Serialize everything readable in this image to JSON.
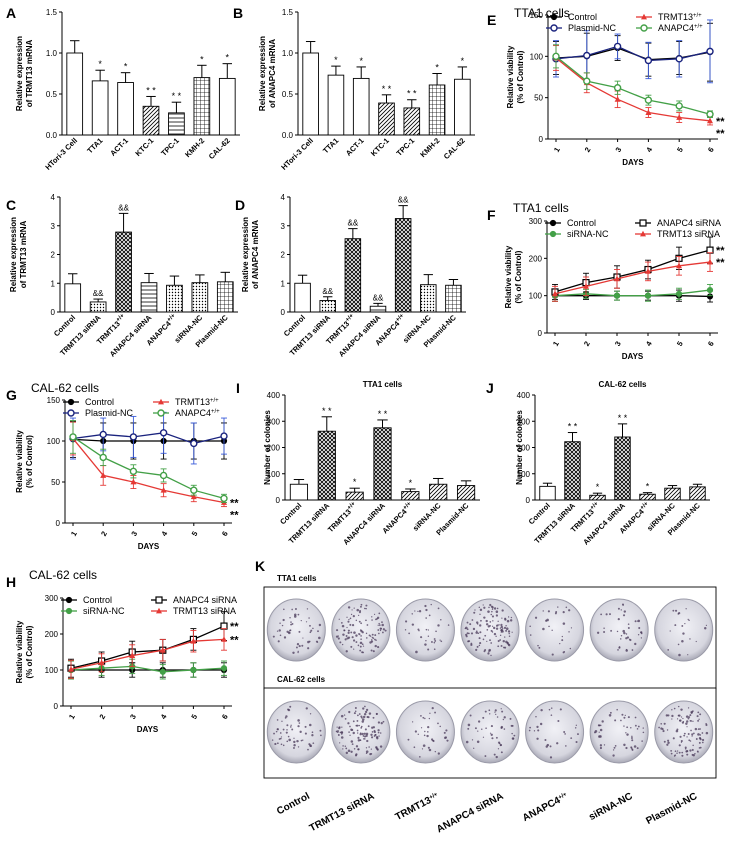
{
  "colors": {
    "control": "#000000",
    "plasmid_nc": "#1a237e",
    "trmt13_oe": "#e53935",
    "anapc4_oe": "#43a047",
    "errbar_blue": "#3a5bd9"
  },
  "chart_data": [
    {
      "id": "A",
      "type": "bar",
      "title": "",
      "ylabel": "Relative expression of TRMT13 mRNA",
      "ylim": [
        0,
        1.5
      ],
      "yticks": [
        "0.0",
        "0.5",
        "1.0",
        "1.5"
      ],
      "categories": [
        "HTori-3 Cell",
        "TTA1",
        "ACT-1",
        "KTC-1",
        "TPC-1",
        "KMH-2",
        "CAL-62"
      ],
      "values": [
        1.0,
        0.66,
        0.64,
        0.35,
        0.27,
        0.7,
        0.69
      ],
      "errors": [
        0.15,
        0.13,
        0.12,
        0.12,
        0.13,
        0.15,
        0.18
      ],
      "patterns": [
        "white",
        "white",
        "white",
        "diag",
        "hatch",
        "grid",
        "white"
      ],
      "annotations": [
        "",
        "*",
        "*",
        "* *",
        "* *",
        "*",
        "*"
      ]
    },
    {
      "id": "B",
      "type": "bar",
      "title": "",
      "ylabel": "Relative expression of ANAPC4 mRNA",
      "ylim": [
        0,
        1.5
      ],
      "yticks": [
        "0.0",
        "0.5",
        "1.0",
        "1.5"
      ],
      "categories": [
        "HTori-3 Cell",
        "TTA1",
        "ACT-1",
        "KTC-1",
        "TPC-1",
        "KMH-2",
        "CAL-62"
      ],
      "values": [
        1.0,
        0.73,
        0.69,
        0.39,
        0.33,
        0.61,
        0.68
      ],
      "errors": [
        0.14,
        0.11,
        0.14,
        0.1,
        0.1,
        0.14,
        0.15
      ],
      "patterns": [
        "white",
        "white",
        "white",
        "diag",
        "diag",
        "grid",
        "white"
      ],
      "annotations": [
        "",
        "*",
        "*",
        "* *",
        "* *",
        "*",
        "*"
      ]
    },
    {
      "id": "C",
      "type": "bar",
      "title": "",
      "ylabel": "Relative expression of TRMT13 mRNA",
      "ylim": [
        0,
        4
      ],
      "yticks": [
        "0",
        "1",
        "2",
        "3",
        "4"
      ],
      "categories": [
        "Control",
        "TRMT13 siRNA",
        "TRMT13+/+",
        "ANAPC4 siRNA",
        "ANAPC4+/+",
        "siRNA-NC",
        "Plasmid-NC"
      ],
      "values": [
        0.98,
        0.35,
        2.78,
        1.02,
        0.93,
        1.02,
        1.05
      ],
      "errors": [
        0.35,
        0.1,
        0.65,
        0.32,
        0.32,
        0.27,
        0.33
      ],
      "patterns": [
        "white",
        "dots",
        "cross",
        "hatch",
        "dots",
        "dots",
        "grid"
      ],
      "annotations": [
        "",
        "&&",
        "&&",
        "",
        "",
        "",
        ""
      ]
    },
    {
      "id": "D",
      "type": "bar",
      "title": "",
      "ylabel": "Relative expression of ANAPC4 mRNA",
      "ylim": [
        0,
        4
      ],
      "yticks": [
        "0",
        "1",
        "2",
        "3",
        "4"
      ],
      "categories": [
        "Control",
        "TRMT13 siRNA",
        "TRMT13+/+",
        "ANAPC4 siRNA",
        "ANAPC4+/+",
        "siRNA-NC",
        "Plasmid-NC"
      ],
      "values": [
        1.0,
        0.4,
        2.55,
        0.2,
        3.25,
        0.95,
        0.93
      ],
      "errors": [
        0.28,
        0.13,
        0.35,
        0.1,
        0.45,
        0.35,
        0.2
      ],
      "patterns": [
        "white",
        "dots",
        "cross",
        "hatch",
        "cross",
        "dots",
        "grid"
      ],
      "annotations": [
        "",
        "&&",
        "&&",
        "&&",
        "&&",
        "",
        ""
      ]
    },
    {
      "id": "E",
      "type": "line",
      "title": "TTA1 cells",
      "ylabel": "Relative viability (% of Control)",
      "xlabel": "DAYS",
      "ylim": [
        0,
        150
      ],
      "yticks": [
        "0",
        "50",
        "100",
        "150"
      ],
      "x": [
        1,
        2,
        3,
        4,
        5,
        6
      ],
      "series": [
        {
          "name": "Control",
          "values": [
            98,
            100,
            110,
            96,
            98,
            105
          ],
          "errors": [
            20,
            28,
            15,
            20,
            20,
            35
          ]
        },
        {
          "name": "Plasmid-NC",
          "values": [
            97,
            101,
            112,
            95,
            97,
            106
          ],
          "errors": [
            22,
            30,
            15,
            22,
            22,
            38
          ]
        },
        {
          "name": "TRMT13+/+",
          "values": [
            98,
            68,
            48,
            32,
            26,
            22
          ],
          "errors": [
            15,
            12,
            10,
            6,
            6,
            5
          ]
        },
        {
          "name": "ANAPC4+/+",
          "values": [
            100,
            70,
            62,
            47,
            40,
            30
          ],
          "errors": [
            14,
            10,
            8,
            6,
            6,
            4
          ]
        }
      ],
      "annotations": [
        "**",
        "**"
      ]
    },
    {
      "id": "F",
      "type": "line",
      "title": "TTA1 cells",
      "ylabel": "Relative viability (% of Control)",
      "xlabel": "DAYS",
      "ylim": [
        0,
        300
      ],
      "yticks": [
        "0",
        "100",
        "200",
        "300"
      ],
      "x": [
        1,
        2,
        3,
        4,
        5,
        6
      ],
      "series": [
        {
          "name": "Control",
          "values": [
            100,
            100,
            100,
            100,
            100,
            98
          ],
          "errors": [
            15,
            10,
            12,
            12,
            15,
            15
          ]
        },
        {
          "name": "siRNA-NC",
          "values": [
            100,
            105,
            100,
            100,
            105,
            115
          ],
          "errors": [
            15,
            12,
            12,
            15,
            15,
            15
          ]
        },
        {
          "name": "ANAPC4 siRNA",
          "values": [
            110,
            135,
            150,
            170,
            200,
            222
          ],
          "errors": [
            20,
            25,
            30,
            25,
            30,
            35
          ]
        },
        {
          "name": "TRMT13 siRNA",
          "values": [
            105,
            125,
            145,
            165,
            180,
            190
          ],
          "errors": [
            20,
            25,
            25,
            25,
            25,
            25
          ]
        }
      ],
      "annotations": [
        "**",
        "**"
      ]
    },
    {
      "id": "G",
      "type": "line",
      "title": "CAL-62 cells",
      "ylabel": "Relative viability (% of Control)",
      "xlabel": "DAYS",
      "ylim": [
        0,
        150
      ],
      "yticks": [
        "0",
        "50",
        "100",
        "150"
      ],
      "x": [
        1,
        2,
        3,
        4,
        5,
        6
      ],
      "series": [
        {
          "name": "Control",
          "values": [
            102,
            100,
            100,
            100,
            100,
            100
          ],
          "errors": [
            22,
            22,
            22,
            22,
            22,
            22
          ]
        },
        {
          "name": "Plasmid-NC",
          "values": [
            103,
            108,
            105,
            110,
            97,
            106
          ],
          "errors": [
            25,
            20,
            25,
            25,
            25,
            22
          ]
        },
        {
          "name": "TRMT13+/+",
          "values": [
            103,
            58,
            50,
            40,
            32,
            25
          ],
          "errors": [
            20,
            12,
            8,
            8,
            6,
            5
          ]
        },
        {
          "name": "ANAPC4+/+",
          "values": [
            105,
            80,
            63,
            58,
            40,
            30
          ],
          "errors": [
            20,
            10,
            8,
            8,
            6,
            5
          ]
        }
      ],
      "annotations": [
        "**",
        "**"
      ]
    },
    {
      "id": "H",
      "type": "line",
      "title": "CAL-62 cells",
      "ylabel": "Relative viability (% of Control)",
      "xlabel": "DAYS",
      "ylim": [
        0,
        300
      ],
      "yticks": [
        "0",
        "100",
        "200",
        "300"
      ],
      "x": [
        1,
        2,
        3,
        4,
        5,
        6
      ],
      "series": [
        {
          "name": "Control",
          "values": [
            100,
            100,
            100,
            100,
            100,
            100
          ],
          "errors": [
            25,
            20,
            20,
            20,
            20,
            20
          ]
        },
        {
          "name": "siRNA-NC",
          "values": [
            100,
            105,
            110,
            95,
            100,
            105
          ],
          "errors": [
            25,
            20,
            20,
            20,
            20,
            20
          ]
        },
        {
          "name": "ANAPC4 siRNA",
          "values": [
            105,
            125,
            150,
            155,
            185,
            222
          ],
          "errors": [
            25,
            25,
            30,
            30,
            30,
            40
          ]
        },
        {
          "name": "TRMT13 siRNA",
          "values": [
            102,
            120,
            140,
            155,
            180,
            185
          ],
          "errors": [
            25,
            25,
            30,
            30,
            30,
            30
          ]
        }
      ],
      "annotations": [
        "**",
        "**"
      ]
    },
    {
      "id": "I",
      "type": "bar",
      "title": "TTA1 cells",
      "ylabel": "Number of colonies",
      "ylim": [
        0,
        400
      ],
      "yticks": [
        "0",
        "100",
        "200",
        "300",
        "400"
      ],
      "categories": [
        "Control",
        "TRMT13 siRNA",
        "TRMT13+/+",
        "ANAPC4 siRNA",
        "ANAPC4+/+",
        "siRNA-NC",
        "Plasmid-NC"
      ],
      "values": [
        60,
        262,
        30,
        275,
        32,
        60,
        55
      ],
      "errors": [
        18,
        55,
        15,
        30,
        10,
        22,
        18
      ],
      "patterns": [
        "white",
        "cross",
        "diag",
        "cross",
        "diag",
        "diag",
        "diag"
      ],
      "annotations": [
        "",
        "* *",
        "*",
        "* *",
        "*",
        "",
        ""
      ]
    },
    {
      "id": "J",
      "type": "bar",
      "title": "CAL-62 cells",
      "ylabel": "Number of colonies",
      "ylim": [
        0,
        400
      ],
      "yticks": [
        "0",
        "100",
        "200",
        "300",
        "400"
      ],
      "categories": [
        "Control",
        "TRMT13 siRNA",
        "TRMT13+/+",
        "ANAPC4 siRNA",
        "ANAPC4+/+",
        "siRNA-NC",
        "Plasmid-NC"
      ],
      "values": [
        52,
        222,
        18,
        240,
        22,
        45,
        50
      ],
      "errors": [
        12,
        35,
        8,
        50,
        6,
        10,
        10
      ],
      "patterns": [
        "white",
        "cross",
        "diag",
        "cross",
        "diag",
        "diag",
        "diag"
      ],
      "annotations": [
        "",
        "* *",
        "*",
        "* *",
        "*",
        "",
        ""
      ]
    }
  ],
  "panel_k": {
    "letter": "K",
    "rows": [
      "TTA1 cells",
      "CAL-62 cells"
    ],
    "labels": [
      "Control",
      "TRMT13 siRNA",
      "TRMT13+/+",
      "ANAPC4 siRNA",
      "ANAPC4+/+",
      "siRNA-NC",
      "Plasmid-NC"
    ],
    "colony_density": [
      [
        0.35,
        0.75,
        0.25,
        0.85,
        0.2,
        0.3,
        0.15
      ],
      [
        0.4,
        0.85,
        0.25,
        0.35,
        0.2,
        0.35,
        0.75
      ]
    ]
  }
}
